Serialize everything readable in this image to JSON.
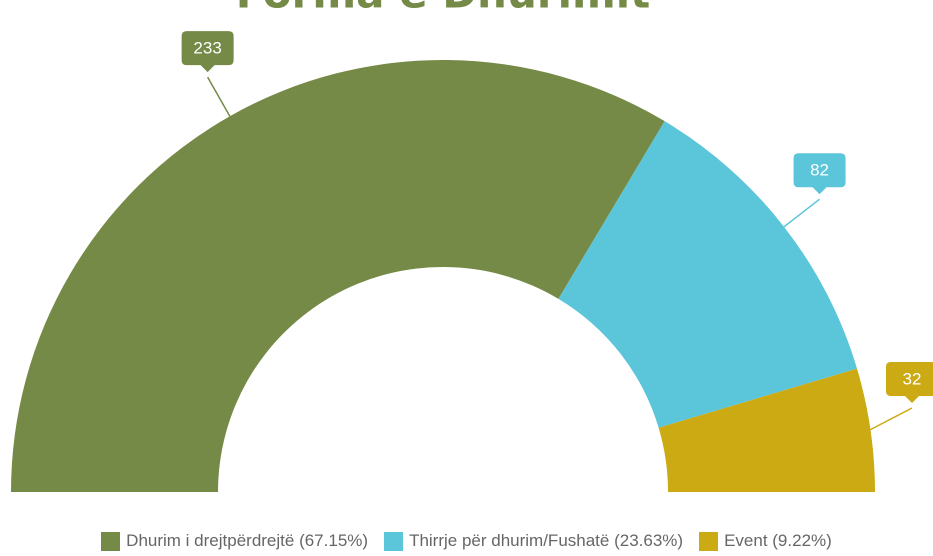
{
  "chart_data": {
    "type": "semi-donut",
    "title": "Forma e Dhurimit",
    "categories": [
      "Dhurim i drejtpërdrejtë (67.15%)",
      "Thirrje për dhurim/Fushatë (23.63%)",
      "Event (9.22%)"
    ],
    "values": [
      233,
      82,
      32
    ],
    "colors": [
      "#758a46",
      "#5bc5d9",
      "#ccaa14"
    ]
  }
}
